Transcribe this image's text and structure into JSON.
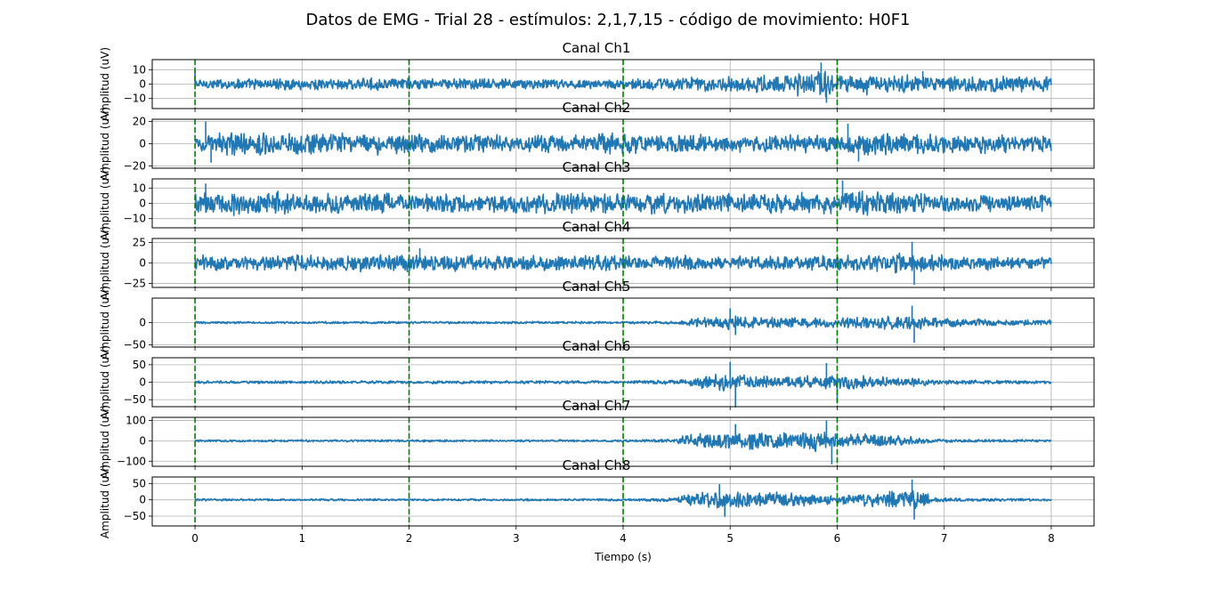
{
  "figure": {
    "title": "Datos de EMG - Trial 28 - estímulos: 2,1,7,15 - código de movimiento: H0F1",
    "xlabel": "Tiempo (s)",
    "ylabel": "Amplitud (uV)"
  },
  "chart_data": {
    "type": "line",
    "xlim": [
      -0.4,
      8.4
    ],
    "x_ticks": [
      0,
      1,
      2,
      3,
      4,
      5,
      6,
      7,
      8
    ],
    "x_range": [
      0,
      8
    ],
    "grid": true,
    "stimulus_markers": {
      "x": [
        0,
        2,
        4,
        6
      ],
      "color": "#008000",
      "style": "dashed"
    },
    "series_color": "#1f77b4",
    "panels": [
      {
        "title": "Canal Ch1",
        "ylim": [
          -17,
          17
        ],
        "yticks": [
          10,
          0,
          -10
        ],
        "ytick_labels": [
          "10",
          "0",
          "−10"
        ],
        "envelope": [
          [
            0,
            3.5
          ],
          [
            2,
            4
          ],
          [
            4,
            3
          ],
          [
            4.3,
            4.5
          ],
          [
            5,
            5
          ],
          [
            5.5,
            6
          ],
          [
            5.85,
            11
          ],
          [
            6,
            8
          ],
          [
            6.5,
            6
          ],
          [
            7,
            5
          ],
          [
            8,
            5
          ]
        ],
        "peaks": [
          [
            5.85,
            15
          ],
          [
            5.9,
            -13
          ],
          [
            6.8,
            9
          ],
          [
            0,
            9
          ]
        ]
      },
      {
        "title": "Canal Ch2",
        "ylim": [
          -22,
          22
        ],
        "yticks": [
          20,
          0,
          -20
        ],
        "ytick_labels": [
          "20",
          "0",
          "−20"
        ],
        "envelope": [
          [
            0,
            7
          ],
          [
            0.3,
            10
          ],
          [
            1,
            9
          ],
          [
            2,
            9
          ],
          [
            3,
            7
          ],
          [
            4,
            9
          ],
          [
            4.3,
            9
          ],
          [
            5,
            7
          ],
          [
            6,
            8
          ],
          [
            6.2,
            11
          ],
          [
            7,
            8
          ],
          [
            8,
            7
          ]
        ],
        "peaks": [
          [
            0.1,
            20
          ],
          [
            0.15,
            -17
          ],
          [
            6.1,
            18
          ],
          [
            6.2,
            -16
          ]
        ]
      },
      {
        "title": "Canal Ch3",
        "ylim": [
          -16,
          16
        ],
        "yticks": [
          10,
          0,
          -10
        ],
        "ytick_labels": [
          "10",
          "0",
          "−10"
        ],
        "envelope": [
          [
            0,
            6
          ],
          [
            0.3,
            8
          ],
          [
            1,
            7
          ],
          [
            2,
            6
          ],
          [
            3,
            6
          ],
          [
            4,
            6.5
          ],
          [
            5,
            6
          ],
          [
            6,
            6.5
          ],
          [
            6.1,
            9
          ],
          [
            7,
            6
          ],
          [
            8,
            5
          ]
        ],
        "peaks": [
          [
            6.05,
            15
          ],
          [
            0.1,
            13
          ]
        ]
      },
      {
        "title": "Canal Ch4",
        "ylim": [
          -30,
          30
        ],
        "yticks": [
          25,
          0,
          -25
        ],
        "ytick_labels": [
          "25",
          "0",
          "−25"
        ],
        "envelope": [
          [
            0,
            9
          ],
          [
            1,
            10
          ],
          [
            2,
            10
          ],
          [
            3,
            9
          ],
          [
            4,
            9
          ],
          [
            5,
            8
          ],
          [
            6,
            9
          ],
          [
            6.7,
            12
          ],
          [
            7,
            9
          ],
          [
            8,
            7
          ]
        ],
        "peaks": [
          [
            6.7,
            26
          ],
          [
            6.72,
            -27
          ],
          [
            2.1,
            18
          ]
        ]
      },
      {
        "title": "Canal Ch5",
        "ylim": [
          -55,
          55
        ],
        "yticks": [
          0,
          -50
        ],
        "ytick_labels": [
          "0",
          "−50"
        ],
        "envelope": [
          [
            0,
            2.5
          ],
          [
            4,
            2.5
          ],
          [
            4.5,
            3
          ],
          [
            4.7,
            10
          ],
          [
            5,
            16
          ],
          [
            5.5,
            11
          ],
          [
            6,
            10
          ],
          [
            6.5,
            16
          ],
          [
            6.8,
            15
          ],
          [
            7,
            9
          ],
          [
            8,
            6
          ]
        ],
        "peaks": [
          [
            6.7,
            38
          ],
          [
            6.72,
            -45
          ],
          [
            5.0,
            32
          ],
          [
            5.05,
            -28
          ]
        ]
      },
      {
        "title": "Canal Ch6",
        "ylim": [
          -70,
          70
        ],
        "yticks": [
          50,
          0,
          -50
        ],
        "ytick_labels": [
          "50",
          "0",
          "−50"
        ],
        "envelope": [
          [
            0,
            4
          ],
          [
            4,
            4
          ],
          [
            4.5,
            6
          ],
          [
            4.8,
            20
          ],
          [
            5,
            24
          ],
          [
            5.4,
            14
          ],
          [
            6,
            22
          ],
          [
            6.5,
            14
          ],
          [
            7,
            6
          ],
          [
            8,
            4
          ]
        ],
        "peaks": [
          [
            5.0,
            58
          ],
          [
            5.05,
            -72
          ],
          [
            5.9,
            55
          ],
          [
            6.0,
            -58
          ]
        ]
      },
      {
        "title": "Canal Ch7",
        "ylim": [
          -125,
          115
        ],
        "yticks": [
          100,
          0,
          -100
        ],
        "ytick_labels": [
          "100",
          "0",
          "−100"
        ],
        "envelope": [
          [
            0,
            5
          ],
          [
            4,
            5
          ],
          [
            4.5,
            10
          ],
          [
            4.6,
            35
          ],
          [
            5.2,
            40
          ],
          [
            5.8,
            48
          ],
          [
            6,
            35
          ],
          [
            6.5,
            30
          ],
          [
            6.9,
            8
          ],
          [
            8,
            5
          ]
        ],
        "peaks": [
          [
            5.9,
            100
          ],
          [
            5.95,
            -115
          ],
          [
            5.05,
            82
          ]
        ]
      },
      {
        "title": "Canal Ch8",
        "ylim": [
          -80,
          70
        ],
        "yticks": [
          50,
          0,
          -50
        ],
        "ytick_labels": [
          "50",
          "0",
          "−50"
        ],
        "envelope": [
          [
            0,
            3
          ],
          [
            4,
            3
          ],
          [
            4.5,
            6
          ],
          [
            4.6,
            22
          ],
          [
            5.2,
            26
          ],
          [
            6,
            12
          ],
          [
            6.5,
            26
          ],
          [
            6.8,
            28
          ],
          [
            6.9,
            6
          ],
          [
            8,
            3
          ]
        ],
        "peaks": [
          [
            6.7,
            62
          ],
          [
            6.72,
            -60
          ],
          [
            4.9,
            48
          ],
          [
            4.95,
            -52
          ]
        ]
      }
    ]
  }
}
